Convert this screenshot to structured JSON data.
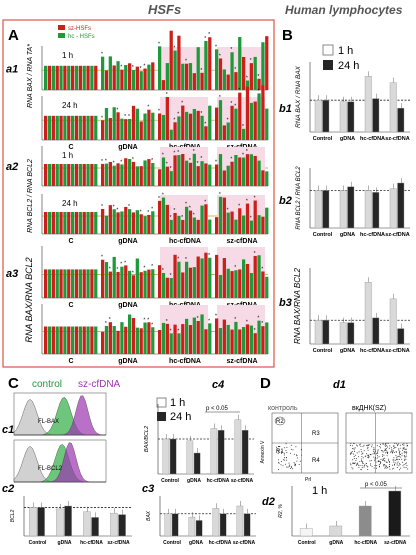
{
  "headers": {
    "hsfs": "HSFs",
    "lymph": "Human lymphocytes"
  },
  "panels": {
    "A": "A",
    "B": "B",
    "C": "C",
    "D": "D"
  },
  "sub": {
    "a1": "a1",
    "a2": "a2",
    "a3": "a3",
    "b1": "b1",
    "b2": "b2",
    "b3": "b3",
    "c1": "c1",
    "c2": "c2",
    "c3": "c3",
    "c4": "c4",
    "d1": "d1",
    "d2": "d2"
  },
  "legendA": {
    "sz": "sz-HSFs",
    "hc": "hc - HSFs"
  },
  "times": {
    "t1": "1 h",
    "t24": "24 h"
  },
  "categoriesA": [
    "C",
    "gDNA",
    "hc-cfDNA",
    "sz-cfDNA"
  ],
  "categoriesB": [
    "Control",
    "gDNA",
    "hc-cfDNA",
    "sz-cfDNA"
  ],
  "ylabelsA": {
    "a1": "RNA BAX / RNA TA*",
    "a2": "RNA BCL2 / RNA BCL2",
    "a3": "RNA BAX/RNA BCL2"
  },
  "ylabelsB": {
    "b1": "RNA BAX / RNA BAX",
    "b2": "RNA BCL2 / RNA BCL2",
    "b3": "RNA BAX/RNA BCL2"
  },
  "flow": {
    "control": "control",
    "sz": "sz-cfDNA",
    "bax": "FL-BAX",
    "bcl2": "FL-BCL2"
  },
  "c_ylabels": {
    "c2": "BCL2",
    "c3": "BAX",
    "c4": "BAX/BCL2"
  },
  "pval": "p < 0.05",
  "dplot": {
    "title": "контроль",
    "title2": "вкДНК(SZ)",
    "ylabel": "Annexin V",
    "xlabel": "PrI",
    "r1": "R1",
    "r2": "R2",
    "r3": "R3",
    "r4": "R4",
    "d2y": "R2, %"
  },
  "colors": {
    "red": "#cc1f1a",
    "green": "#1e9a3a",
    "light": "#d9d9d9",
    "dark": "#262626",
    "border": "#d8584a"
  },
  "chart_data": [
    {
      "id": "b1",
      "type": "bar",
      "categories": [
        "Control",
        "gDNA",
        "hc-cfDNA",
        "sz-cfDNA"
      ],
      "series": [
        {
          "name": "1 h",
          "values": [
            1.0,
            0.95,
            1.75,
            1.55
          ]
        },
        {
          "name": "24 h",
          "values": [
            1.0,
            0.95,
            1.05,
            0.75
          ]
        }
      ],
      "ylim": [
        0,
        2.2
      ]
    },
    {
      "id": "b2",
      "type": "bar",
      "categories": [
        "Control",
        "gDNA",
        "hc-cfDNA",
        "sz-cfDNA"
      ],
      "series": [
        {
          "name": "1 h",
          "values": [
            1.0,
            1.0,
            1.0,
            1.05
          ]
        },
        {
          "name": "24 h",
          "values": [
            1.0,
            1.1,
            0.95,
            1.2
          ]
        }
      ],
      "ylim": [
        0,
        1.6
      ]
    },
    {
      "id": "b3",
      "type": "bar",
      "categories": [
        "Control",
        "gDNA",
        "hc-cfDNA",
        "sz-cfDNA"
      ],
      "series": [
        {
          "name": "1 h",
          "values": [
            1.0,
            0.9,
            2.6,
            1.9
          ]
        },
        {
          "name": "24 h",
          "values": [
            1.0,
            0.9,
            1.1,
            0.65
          ]
        }
      ],
      "ylim": [
        0,
        3.2
      ]
    },
    {
      "id": "c4",
      "type": "bar",
      "categories": [
        "Control",
        "gDNA",
        "hc-cfDNA",
        "sz-cfDNA"
      ],
      "series": [
        {
          "name": "1 h",
          "values": [
            1.0,
            0.95,
            1.3,
            1.55
          ]
        },
        {
          "name": "24 h",
          "values": [
            1.0,
            0.6,
            1.25,
            1.25
          ]
        }
      ],
      "ylim": [
        0,
        2.0
      ]
    },
    {
      "id": "c2",
      "type": "bar",
      "categories": [
        "Control",
        "gDNA",
        "hc-cfDNA",
        "sz-cfDNA"
      ],
      "series": [
        {
          "name": "1 h",
          "values": [
            1.0,
            0.95,
            0.85,
            0.8
          ]
        },
        {
          "name": "24 h",
          "values": [
            1.0,
            1.05,
            0.65,
            0.75
          ]
        }
      ],
      "ylim": [
        0,
        1.4
      ]
    },
    {
      "id": "c3",
      "type": "bar",
      "categories": [
        "Control",
        "gDNA",
        "hc-cfDNA",
        "sz-cfDNA"
      ],
      "series": [
        {
          "name": "1 h",
          "values": [
            1.0,
            0.85,
            1.25,
            1.35
          ]
        },
        {
          "name": "24 h",
          "values": [
            1.0,
            0.7,
            1.0,
            1.0
          ]
        }
      ],
      "ylim": [
        0,
        1.8
      ]
    },
    {
      "id": "d2",
      "type": "bar",
      "categories": [
        "Control",
        "gDNA",
        "hc-cfDNA",
        "sz-cfDNA"
      ],
      "series": [
        {
          "name": "R2",
          "values": [
            3,
            4,
            12,
            18
          ]
        }
      ],
      "ylim": [
        0,
        20
      ]
    }
  ]
}
